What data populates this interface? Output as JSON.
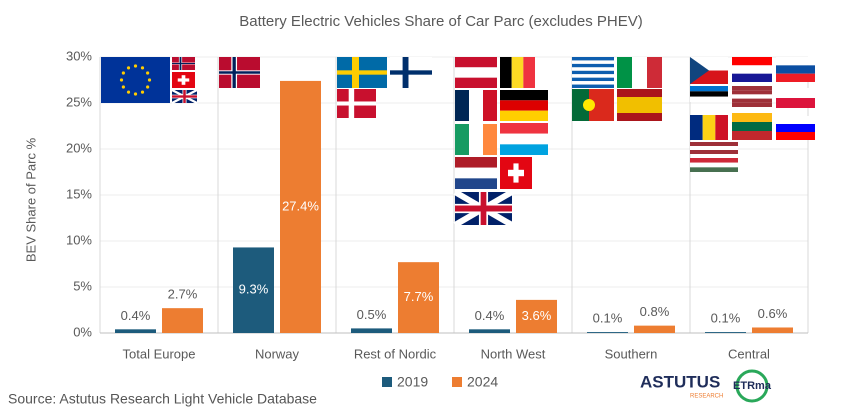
{
  "chart_data": {
    "type": "bar",
    "title": "Battery Electric Vehicles Share of Car Parc (excludes PHEV)",
    "y_label": "BEV Share of Parc %",
    "categories": [
      "Total Europe",
      "Norway",
      "Rest of Nordic",
      "North West",
      "Southern",
      "Central"
    ],
    "series": [
      {
        "name": "2019",
        "color": "#1d5b7c",
        "values": [
          0.4,
          9.3,
          0.5,
          0.4,
          0.1,
          0.1
        ],
        "value_labels": [
          "0.4%",
          "9.3%",
          "0.5%",
          "0.4%",
          "0.1%",
          "0.1%"
        ]
      },
      {
        "name": "2024",
        "color": "#ed7d31",
        "values": [
          2.7,
          27.4,
          7.7,
          3.6,
          0.8,
          0.6
        ],
        "value_labels": [
          "2.7%",
          "27.4%",
          "7.7%",
          "3.6%",
          "0.8%",
          "0.6%"
        ]
      }
    ],
    "ylim": [
      0,
      30
    ],
    "yticks": [
      {
        "value": 0,
        "label": "0%"
      },
      {
        "value": 5,
        "label": "5%"
      },
      {
        "value": 10,
        "label": "10%"
      },
      {
        "value": 15,
        "label": "15%"
      },
      {
        "value": 20,
        "label": "20%"
      },
      {
        "value": 25,
        "label": "25%"
      },
      {
        "value": 30,
        "label": "30%"
      }
    ],
    "grid": true,
    "legend": "bottom",
    "source": "Source: Astutus Research Light Vehicle Database",
    "logos": [
      "ASTUTUS",
      "RESEARCH",
      "ETRma"
    ]
  }
}
